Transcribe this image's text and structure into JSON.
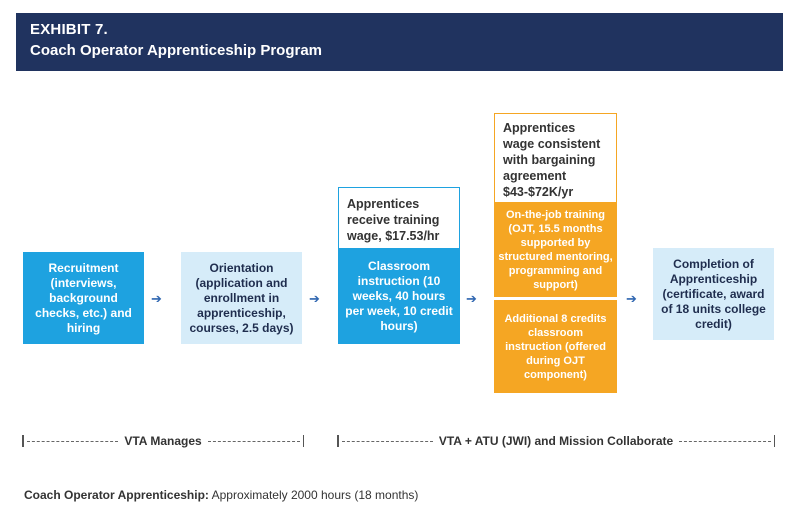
{
  "header": {
    "exhibit": "EXHIBIT 7.",
    "title": "Coach Operator Apprenticeship Program"
  },
  "steps": {
    "recruitment": "Recruitment (interviews, background checks, etc.) and hiring",
    "orientation": "Orientation (application and enrollment in apprenticeship, courses, 2.5 days)",
    "classroom_note": "Apprentices receive training wage, $17.53/hr",
    "classroom": "Classroom instruction (10 weeks, 40 hours per week, 10 credit hours)",
    "ojt_note": "Apprentices wage consistent with bargaining agreement $43-$72K/yr",
    "ojt": "On-the-job training (OJT, 15.5 months supported by structured mentoring, programming and support)",
    "additional": "Additional 8 credits classroom instruction (offered during OJT component)",
    "completion": "Completion of Apprenticeship (certificate, award of 18 units college credit)"
  },
  "timeline": {
    "left_label": "VTA Manages",
    "right_label": "VTA + ATU (JWI) and Mission Collaborate"
  },
  "footer": {
    "label": "Coach Operator Apprenticeship:",
    "text": " Approximately 2000 hours (18 months)"
  },
  "colors": {
    "header_bg": "#20335f",
    "step_dark": "#1ea2e0",
    "step_light": "#d6ecf9",
    "step_orange": "#f5a623",
    "arrow": "#2f66b0"
  }
}
